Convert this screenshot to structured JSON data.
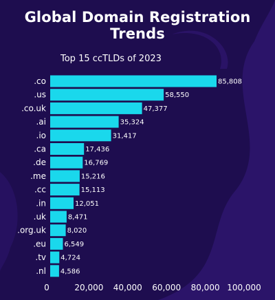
{
  "header": {
    "title": "Global Domain Registration Trends"
  },
  "colors": {
    "background": "#1e0d4f",
    "bar": "#1ad8ec",
    "text": "#ffffff"
  },
  "chart_data": {
    "type": "bar",
    "orientation": "horizontal",
    "title": "Top 15 ccTLDs of 2023",
    "categories": [
      ".co",
      ".us",
      ".co.uk",
      ".ai",
      ".io",
      ".ca",
      ".de",
      ".me",
      ".cc",
      ".in",
      ".uk",
      ".org.uk",
      ".eu",
      ".tv",
      ".nl"
    ],
    "values": [
      85808,
      58550,
      47377,
      35324,
      31417,
      17436,
      16769,
      15216,
      15113,
      12051,
      8471,
      8020,
      6549,
      4724,
      4586
    ],
    "value_labels": [
      "85,808",
      "58,550",
      "47,377",
      "35,324",
      "31,417",
      "17,436",
      "16,769",
      "15,216",
      "15,113",
      "12,051",
      "8,471",
      "8,020",
      "6,549",
      "4,724",
      "4,586"
    ],
    "x_ticks": [
      0,
      20000,
      40000,
      60000,
      80000,
      100000
    ],
    "x_tick_labels": [
      "0",
      "20,000",
      "40,000",
      "60,000",
      "80,000",
      "100,000"
    ],
    "xlim": [
      0,
      100000
    ],
    "xlabel": "",
    "ylabel": "",
    "grid": false,
    "legend": false
  }
}
